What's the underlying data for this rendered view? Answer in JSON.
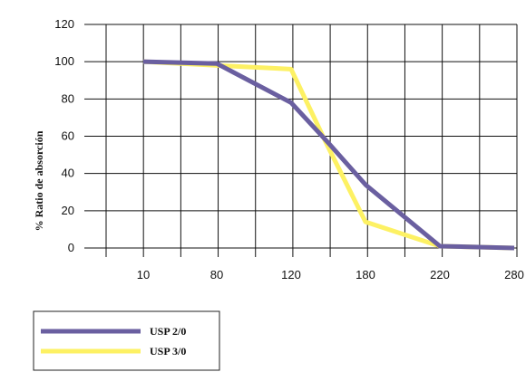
{
  "chart_data": {
    "type": "line",
    "categories": [
      "10",
      "80",
      "120",
      "",
      "180",
      "220",
      "280"
    ],
    "series": [
      {
        "name": "USP 2/0",
        "color": "#6a5fa0",
        "values": [
          100,
          99,
          78,
          57,
          34,
          1,
          0
        ]
      },
      {
        "name": "USP 3/0",
        "color": "#fdf163",
        "values": [
          100,
          98,
          96,
          55,
          14,
          1,
          0
        ]
      }
    ],
    "xlabel": "",
    "ylabel": "% Ratio de absorción",
    "yticks": [
      0,
      20,
      40,
      60,
      80,
      100,
      120
    ],
    "ylim": [
      0,
      120
    ],
    "grid": true,
    "legend_position": "bottom-left"
  }
}
